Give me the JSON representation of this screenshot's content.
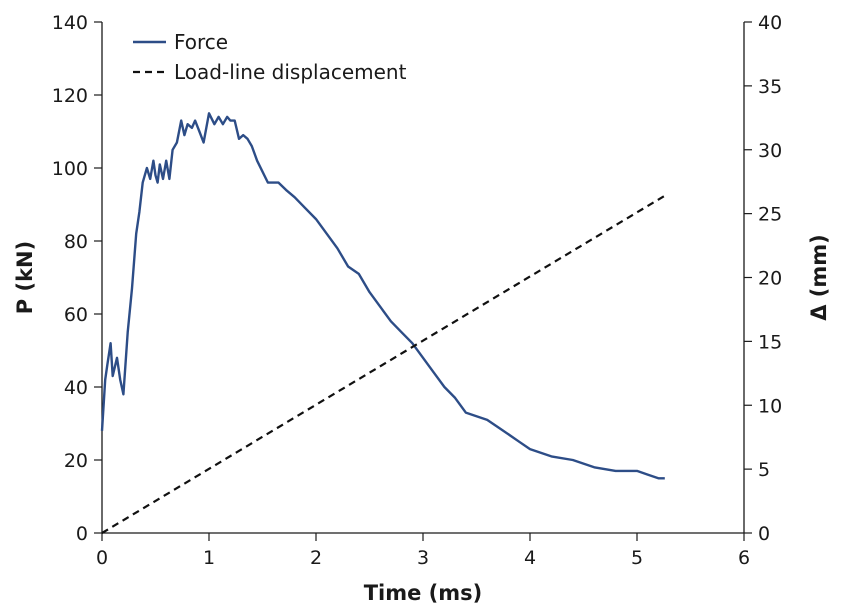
{
  "chart_data": {
    "type": "line",
    "xlabel": "Time (ms)",
    "ylabel_left": "P (kN)",
    "ylabel_right": "Δ (mm)",
    "xlim": [
      0,
      6
    ],
    "ylim_left": [
      0,
      140
    ],
    "ylim_right": [
      0,
      40
    ],
    "xticks": [
      "0",
      "1",
      "2",
      "3",
      "4",
      "5",
      "6"
    ],
    "yticks_left": [
      "0",
      "20",
      "40",
      "60",
      "80",
      "100",
      "120",
      "140"
    ],
    "yticks_right": [
      "0",
      "5",
      "10",
      "15",
      "20",
      "25",
      "30",
      "35",
      "40"
    ],
    "grid": false,
    "legend_position": "top-left",
    "colors": {
      "force": "#2d4d87",
      "displacement": "#111111"
    },
    "series": [
      {
        "name": "Force",
        "axis": "left",
        "style": "solid",
        "x": [
          0.0,
          0.03,
          0.05,
          0.08,
          0.1,
          0.14,
          0.17,
          0.2,
          0.24,
          0.28,
          0.32,
          0.35,
          0.38,
          0.42,
          0.45,
          0.48,
          0.5,
          0.52,
          0.54,
          0.57,
          0.6,
          0.63,
          0.66,
          0.7,
          0.74,
          0.77,
          0.8,
          0.84,
          0.87,
          0.91,
          0.95,
          1.0,
          1.05,
          1.09,
          1.13,
          1.17,
          1.2,
          1.24,
          1.28,
          1.32,
          1.36,
          1.4,
          1.45,
          1.55,
          1.65,
          1.72,
          1.8,
          1.9,
          2.0,
          2.1,
          2.2,
          2.3,
          2.4,
          2.5,
          2.6,
          2.7,
          2.8,
          2.9,
          3.0,
          3.1,
          3.2,
          3.3,
          3.4,
          3.5,
          3.6,
          3.7,
          3.8,
          3.9,
          4.0,
          4.2,
          4.4,
          4.6,
          4.8,
          5.0,
          5.1,
          5.2,
          5.26
        ],
        "values": [
          28,
          42,
          46,
          52,
          43,
          48,
          42,
          38,
          55,
          67,
          82,
          88,
          96,
          100,
          97,
          102,
          98,
          96,
          101,
          97,
          102,
          97,
          105,
          107,
          113,
          109,
          112,
          111,
          113,
          110,
          107,
          115,
          112,
          114,
          112,
          114,
          113,
          113,
          108,
          109,
          108,
          106,
          102,
          96,
          96,
          94,
          92,
          89,
          86,
          82,
          78,
          73,
          71,
          66,
          62,
          58,
          55,
          52,
          48,
          44,
          40,
          37,
          33,
          32,
          31,
          29,
          27,
          25,
          23,
          21,
          20,
          18,
          17,
          17,
          16,
          15,
          15
        ]
      },
      {
        "name": "Load-line displacement",
        "axis": "right",
        "style": "dashed",
        "x": [
          0.0,
          5.26
        ],
        "values": [
          0,
          26.4
        ]
      }
    ]
  }
}
